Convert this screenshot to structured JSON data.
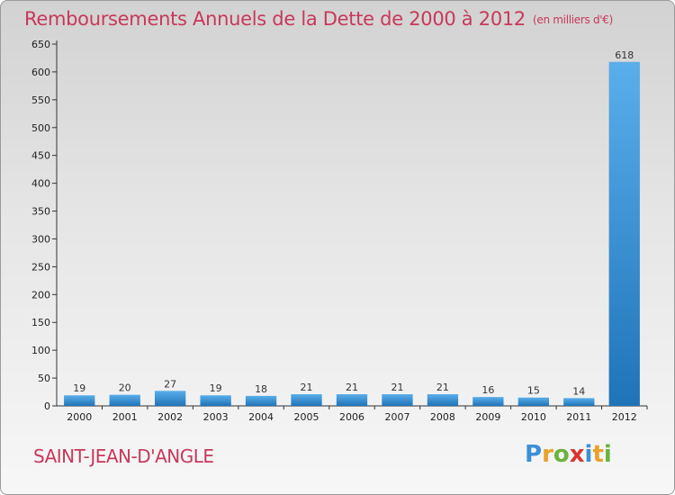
{
  "title": "Remboursements Annuels de la Dette de 2000 à 2012",
  "unit": "(en milliers d'€)",
  "commune": "SAINT-JEAN-D'ANGLE",
  "logo_text": "Proxiti",
  "colors": {
    "title": "#c8385a",
    "bar_light": "#5aaeea",
    "bar_dark": "#1f74b8",
    "axis": "#333333"
  },
  "chart_data": {
    "type": "bar",
    "title": "Remboursements Annuels de la Dette de 2000 à 2012",
    "categories": [
      "2000",
      "2001",
      "2002",
      "2003",
      "2004",
      "2005",
      "2006",
      "2007",
      "2008",
      "2009",
      "2010",
      "2011",
      "2012"
    ],
    "values": [
      19,
      20,
      27,
      19,
      18,
      21,
      21,
      21,
      21,
      16,
      15,
      14,
      618
    ],
    "ylim": [
      0,
      650
    ],
    "yticks": [
      0,
      50,
      100,
      150,
      200,
      250,
      300,
      350,
      400,
      450,
      500,
      550,
      600,
      650
    ],
    "grid": false,
    "xlabel": "",
    "ylabel": ""
  }
}
